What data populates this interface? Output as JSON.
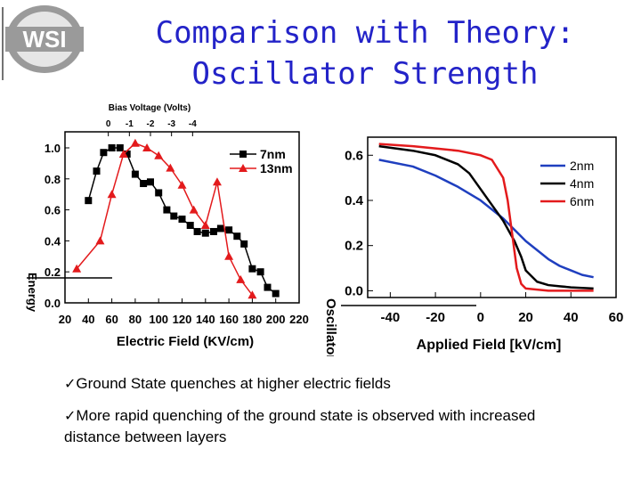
{
  "logo": {
    "text": "WSI"
  },
  "title": {
    "line1": "Comparison with Theory:",
    "line2": "Oscillator Strength"
  },
  "bullets": [
    "Ground State quenches at higher electric fields",
    "More rapid quenching of the ground state is observed with increased distance between layers"
  ],
  "colors": {
    "title": "#2323c8",
    "red": "#e31a1c",
    "blue": "#1f3fbf",
    "black": "#000000"
  },
  "chart_data": [
    {
      "type": "line",
      "title": "",
      "top_axis_label": "Bias Voltage (Volts)",
      "top_ticks": [
        "0",
        "-1",
        "-2",
        "-3",
        "-4"
      ],
      "top_tick_positions": [
        57,
        75,
        93,
        111,
        129
      ],
      "xlabel": "Electric Field (KV/cm)",
      "ylabel": "Energy",
      "x_ticks": [
        "20",
        "40",
        "60",
        "80",
        "100",
        "120",
        "140",
        "160",
        "180",
        "200",
        "220"
      ],
      "y_ticks": [
        "0.0",
        "0.2",
        "0.4",
        "0.6",
        "0.8",
        "1.0"
      ],
      "xlim": [
        20,
        220
      ],
      "ylim": [
        0,
        1.0
      ],
      "legend": "top-right",
      "series": [
        {
          "name": "7nm",
          "marker": "square",
          "color": "#000000",
          "x": [
            40,
            47,
            53,
            60,
            67,
            73,
            80,
            87,
            93,
            100,
            107,
            113,
            120,
            127,
            133,
            140,
            147,
            153,
            160,
            167,
            173,
            180,
            187,
            193,
            200
          ],
          "y": [
            0.66,
            0.85,
            0.97,
            1.0,
            1.0,
            0.96,
            0.83,
            0.77,
            0.78,
            0.71,
            0.6,
            0.56,
            0.54,
            0.5,
            0.46,
            0.45,
            0.46,
            0.48,
            0.47,
            0.43,
            0.38,
            0.22,
            0.2,
            0.1,
            0.06
          ]
        },
        {
          "name": "13nm",
          "marker": "triangle",
          "color": "#e31a1c",
          "x": [
            30,
            50,
            60,
            70,
            80,
            90,
            100,
            110,
            120,
            130,
            140,
            150,
            160,
            170,
            180
          ],
          "y": [
            0.22,
            0.4,
            0.7,
            0.96,
            1.03,
            1.0,
            0.95,
            0.87,
            0.76,
            0.6,
            0.5,
            0.78,
            0.3,
            0.15,
            0.05
          ]
        }
      ]
    },
    {
      "type": "line",
      "title": "",
      "xlabel": "Applied Field [kV/cm]",
      "ylabel": "Oscillator Strength",
      "x_ticks": [
        "-40",
        "-20",
        "0",
        "20",
        "40",
        "60"
      ],
      "y_ticks": [
        "0.0",
        "0.2",
        "0.4",
        "0.6"
      ],
      "xlim": [
        -50,
        60
      ],
      "ylim": [
        -0.03,
        0.68
      ],
      "legend": "top-right",
      "series": [
        {
          "name": "2nm",
          "color": "#1f3fbf",
          "x": [
            -45,
            -30,
            -20,
            -10,
            0,
            5,
            10,
            15,
            20,
            25,
            30,
            35,
            40,
            45,
            50
          ],
          "y": [
            0.58,
            0.55,
            0.51,
            0.46,
            0.4,
            0.36,
            0.32,
            0.27,
            0.22,
            0.18,
            0.14,
            0.11,
            0.09,
            0.07,
            0.06
          ]
        },
        {
          "name": "4nm",
          "color": "#000000",
          "x": [
            -45,
            -30,
            -20,
            -10,
            -5,
            0,
            5,
            10,
            15,
            18,
            20,
            25,
            30,
            35,
            40,
            50
          ],
          "y": [
            0.64,
            0.62,
            0.6,
            0.56,
            0.52,
            0.45,
            0.38,
            0.31,
            0.22,
            0.15,
            0.09,
            0.04,
            0.025,
            0.02,
            0.015,
            0.01
          ]
        },
        {
          "name": "6nm",
          "color": "#e31a1c",
          "x": [
            -45,
            -30,
            -20,
            -10,
            0,
            5,
            10,
            12,
            14,
            16,
            18,
            20,
            25,
            30,
            50
          ],
          "y": [
            0.65,
            0.64,
            0.63,
            0.62,
            0.6,
            0.58,
            0.5,
            0.4,
            0.25,
            0.1,
            0.03,
            0.01,
            0.005,
            0.0,
            0.0
          ]
        }
      ]
    }
  ]
}
